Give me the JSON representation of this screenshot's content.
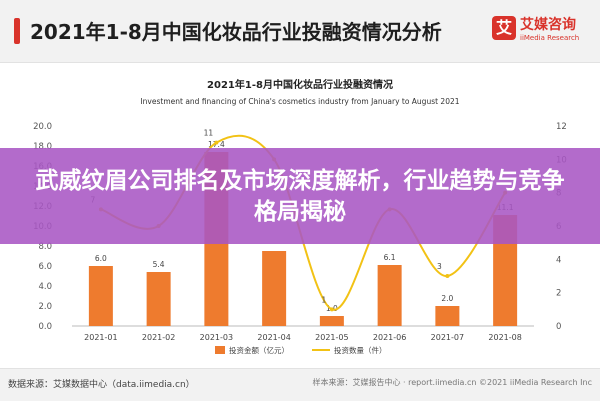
{
  "header": {
    "title": "2021年1-8月中国化妆品行业投融资情况分析"
  },
  "logo": {
    "mark": "艾",
    "name": "艾媒咨询",
    "sub": "iiMedia Research"
  },
  "overlay": {
    "text": "武威纹眉公司排名及市场深度解析，行业趋势与竞争格局揭秘"
  },
  "footer": {
    "source": "数据来源：艾媒数据中心（data.iimedia.cn）",
    "right": "样本来源：艾媒报告中心 · report.iimedia.cn   ©2021 iiMedia Research Inc"
  },
  "colors": {
    "bar": "#ee7b2e",
    "line": "#f2c215",
    "accent": "#d9332b",
    "overlay": "#a857c4"
  },
  "chart_data": {
    "type": "bar",
    "title": "2021年1-8月中国化妆品行业投融资情况",
    "subtitle": "Investment and financing of China's cosmetics industry from January to August 2021",
    "categories": [
      "2021-01",
      "2021-02",
      "2021-03",
      "2021-04",
      "2021-05",
      "2021-06",
      "2021-07",
      "2021-08"
    ],
    "series": [
      {
        "name": "投资金额（亿元）",
        "type": "bar",
        "axis": "left",
        "values": [
          6.0,
          5.4,
          17.4,
          7.5,
          1.0,
          6.1,
          2.0,
          11.1
        ]
      },
      {
        "name": "投资数量（件）",
        "type": "line",
        "axis": "right",
        "values": [
          7,
          6,
          11,
          10,
          1,
          7,
          3,
          8
        ]
      }
    ],
    "bar_labels": [
      "6.0",
      "5.4",
      "17.4",
      "",
      "1.0",
      "6.1",
      "2.0",
      "11.1"
    ],
    "line_labels": [
      "7",
      "",
      "11",
      "",
      "1",
      "",
      "3",
      ""
    ],
    "y_left": {
      "ticks": [
        "0.0",
        "2.0",
        "4.0",
        "6.0",
        "8.0",
        "10.0",
        "12.0",
        "14.0",
        "16.0",
        "18.0",
        "20.0"
      ],
      "min": 0,
      "max": 20
    },
    "y_right": {
      "ticks": [
        "0",
        "2",
        "4",
        "6",
        "8",
        "10",
        "12"
      ],
      "min": 0,
      "max": 12
    },
    "legend_position": "bottom",
    "grid": false
  }
}
